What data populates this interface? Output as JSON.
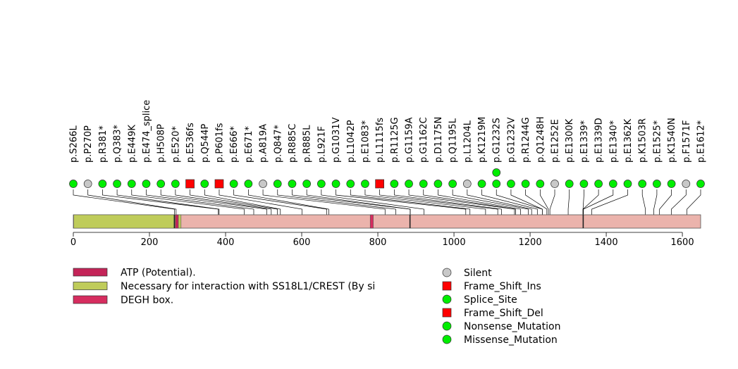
{
  "chart_data": {
    "type": "lollipop",
    "protein_length": 1648,
    "xlim": [
      0,
      1648
    ],
    "x_ticks": [
      0,
      200,
      400,
      600,
      800,
      1000,
      1200,
      1400,
      1600
    ],
    "domains": [
      {
        "name": "Necessary for interaction with SS18L1/CREST (By si",
        "start": 1,
        "end": 283,
        "color": "#bfcc5a"
      },
      {
        "name": "DEGH box.",
        "start": 780,
        "end": 788,
        "color": "#d62d5f"
      },
      {
        "name": "ATP (Potential).",
        "start": 268,
        "end": 276,
        "color": "#c42458"
      }
    ],
    "minor_features": [
      {
        "start": 264,
        "end": 266
      },
      {
        "start": 883,
        "end": 885
      },
      {
        "start": 1338,
        "end": 1340
      }
    ],
    "mutations": [
      {
        "label": "p.S266L",
        "pos": 266,
        "type": "Missense_Mutation",
        "count": 1
      },
      {
        "label": "p.P270P",
        "pos": 270,
        "type": "Silent",
        "count": 1
      },
      {
        "label": "p.R381*",
        "pos": 381,
        "type": "Nonsense_Mutation",
        "count": 1
      },
      {
        "label": "p.Q383*",
        "pos": 383,
        "type": "Nonsense_Mutation",
        "count": 1
      },
      {
        "label": "p.E449K",
        "pos": 449,
        "type": "Missense_Mutation",
        "count": 1
      },
      {
        "label": "p.E474_splice",
        "pos": 474,
        "type": "Splice_Site",
        "count": 1
      },
      {
        "label": "p.H508P",
        "pos": 508,
        "type": "Missense_Mutation",
        "count": 1
      },
      {
        "label": "p.E520*",
        "pos": 520,
        "type": "Nonsense_Mutation",
        "count": 1
      },
      {
        "label": "p.E536fs",
        "pos": 536,
        "type": "Frame_Shift_Ins",
        "count": 1
      },
      {
        "label": "p.Q544P",
        "pos": 544,
        "type": "Missense_Mutation",
        "count": 1
      },
      {
        "label": "p.P601fs",
        "pos": 601,
        "type": "Frame_Shift_Del",
        "count": 1
      },
      {
        "label": "p.E666*",
        "pos": 666,
        "type": "Nonsense_Mutation",
        "count": 1
      },
      {
        "label": "p.E671*",
        "pos": 671,
        "type": "Nonsense_Mutation",
        "count": 1
      },
      {
        "label": "p.A819A",
        "pos": 819,
        "type": "Silent",
        "count": 1
      },
      {
        "label": "p.Q847*",
        "pos": 847,
        "type": "Nonsense_Mutation",
        "count": 1
      },
      {
        "label": "p.R885C",
        "pos": 885,
        "type": "Missense_Mutation",
        "count": 1
      },
      {
        "label": "p.R885L",
        "pos": 885,
        "type": "Missense_Mutation",
        "count": 1
      },
      {
        "label": "p.L921F",
        "pos": 921,
        "type": "Missense_Mutation",
        "count": 1
      },
      {
        "label": "p.G1031V",
        "pos": 1031,
        "type": "Missense_Mutation",
        "count": 1
      },
      {
        "label": "p.L1042P",
        "pos": 1042,
        "type": "Missense_Mutation",
        "count": 1
      },
      {
        "label": "p.E1083*",
        "pos": 1083,
        "type": "Nonsense_Mutation",
        "count": 1
      },
      {
        "label": "p.L1115fs",
        "pos": 1115,
        "type": "Frame_Shift_Del",
        "count": 1
      },
      {
        "label": "p.R1125G",
        "pos": 1125,
        "type": "Missense_Mutation",
        "count": 1
      },
      {
        "label": "p.G1159A",
        "pos": 1159,
        "type": "Missense_Mutation",
        "count": 1
      },
      {
        "label": "p.G1162C",
        "pos": 1162,
        "type": "Missense_Mutation",
        "count": 1
      },
      {
        "label": "p.D1175N",
        "pos": 1175,
        "type": "Missense_Mutation",
        "count": 1
      },
      {
        "label": "p.Q1195L",
        "pos": 1195,
        "type": "Missense_Mutation",
        "count": 1
      },
      {
        "label": "p.L1204L",
        "pos": 1204,
        "type": "Silent",
        "count": 1
      },
      {
        "label": "p.K1219M",
        "pos": 1219,
        "type": "Missense_Mutation",
        "count": 1
      },
      {
        "label": "p.G1232S",
        "pos": 1232,
        "type": "Missense_Mutation",
        "count": 2
      },
      {
        "label": "p.G1232V",
        "pos": 1232,
        "type": "Missense_Mutation",
        "count": 1
      },
      {
        "label": "p.R1244G",
        "pos": 1244,
        "type": "Missense_Mutation",
        "count": 1
      },
      {
        "label": "p.Q1248H",
        "pos": 1248,
        "type": "Missense_Mutation",
        "count": 1
      },
      {
        "label": "p.E1252E",
        "pos": 1252,
        "type": "Silent",
        "count": 1
      },
      {
        "label": "p.E1300K",
        "pos": 1300,
        "type": "Missense_Mutation",
        "count": 1
      },
      {
        "label": "p.E1339*",
        "pos": 1339,
        "type": "Nonsense_Mutation",
        "count": 1
      },
      {
        "label": "p.E1339D",
        "pos": 1339,
        "type": "Missense_Mutation",
        "count": 1
      },
      {
        "label": "p.E1340*",
        "pos": 1340,
        "type": "Nonsense_Mutation",
        "count": 1
      },
      {
        "label": "p.E1362K",
        "pos": 1362,
        "type": "Missense_Mutation",
        "count": 1
      },
      {
        "label": "p.K1503R",
        "pos": 1503,
        "type": "Missense_Mutation",
        "count": 1
      },
      {
        "label": "p.E1525*",
        "pos": 1525,
        "type": "Nonsense_Mutation",
        "count": 1
      },
      {
        "label": "p.K1540N",
        "pos": 1540,
        "type": "Missense_Mutation",
        "count": 1
      },
      {
        "label": "p.F1571F",
        "pos": 1571,
        "type": "Silent",
        "count": 1
      },
      {
        "label": "p.E1612*",
        "pos": 1612,
        "type": "Nonsense_Mutation",
        "count": 1
      }
    ],
    "domain_legend": [
      {
        "label": "ATP (Potential).",
        "color": "#c42458"
      },
      {
        "label": "Necessary for interaction with SS18L1/CREST (By si",
        "color": "#bfcc5a"
      },
      {
        "label": "DEGH box.",
        "color": "#d62d5f"
      }
    ],
    "mutation_legend": [
      {
        "label": "Silent",
        "shape": "circle",
        "color": "#c8c8c8"
      },
      {
        "label": "Frame_Shift_Ins",
        "shape": "square",
        "color": "#ff0000"
      },
      {
        "label": "Splice_Site",
        "shape": "circle",
        "color": "#00ee00"
      },
      {
        "label": "Frame_Shift_Del",
        "shape": "square",
        "color": "#ff0000"
      },
      {
        "label": "Nonsense_Mutation",
        "shape": "circle",
        "color": "#00ee00"
      },
      {
        "label": "Missense_Mutation",
        "shape": "circle",
        "color": "#00ee00"
      }
    ],
    "colors": {
      "protein_bar": "#ebb3ac",
      "missense": "#00ee00",
      "silent": "#c8c8c8",
      "frameshift": "#ff0000"
    }
  }
}
